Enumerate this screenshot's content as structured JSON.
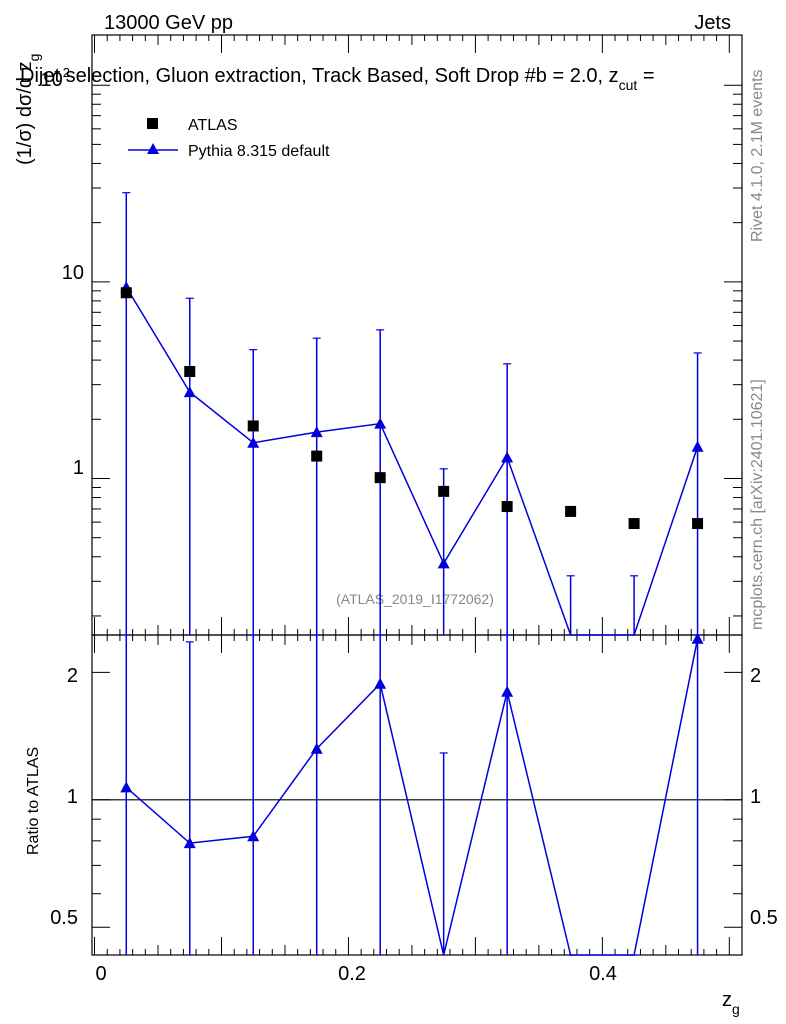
{
  "header": {
    "left": "13000 GeV pp",
    "right": "Jets",
    "title": "Dijet selection, Gluon extraction, Track Based, Soft Drop #b = 2.0, z",
    "title_sub": "cut",
    "title_tail": " =",
    "rivet": "Rivet 4.1.0,  2.1M events",
    "mcplots": "mcplots.cern.ch [arXiv:2401.10621]",
    "analysis": "(ATLAS_2019_I1772062)"
  },
  "axes": {
    "ylabel_main": "(1/σ) dσ/d z",
    "ylabel_main_sub": "g",
    "ylabel_ratio": "Ratio to ATLAS",
    "xlabel": "z",
    "xlabel_sub": "g",
    "main_tick_labels": [
      "10",
      "1"
    ],
    "main_top_tick": "10",
    "main_top_tick_exp": "2",
    "ratio_tick_labels": [
      "2",
      "1",
      "0.5"
    ],
    "x_tick_labels": [
      "0",
      "0.2",
      "0.4"
    ]
  },
  "legend": {
    "atlas": "ATLAS",
    "pythia": "Pythia 8.315 default"
  },
  "colors": {
    "data": "#000000",
    "mc": "#0000dd"
  },
  "chart_data": [
    {
      "type": "scatter",
      "x": [
        0.025,
        0.075,
        0.125,
        0.175,
        0.225,
        0.275,
        0.325,
        0.375,
        0.425,
        0.475
      ],
      "xlim": [
        -0.002,
        0.51
      ],
      "ylim": [
        0.16,
        180
      ],
      "yscale": "log",
      "series": [
        {
          "name": "ATLAS",
          "values": [
            8.8,
            3.5,
            1.85,
            1.3,
            1.01,
            0.86,
            0.72,
            0.68,
            0.59,
            0.59
          ]
        },
        {
          "name": "Pythia 8.315 default",
          "values": [
            9.4,
            2.75,
            1.52,
            1.72,
            1.9,
            0.37,
            1.28,
            0.16,
            0.16,
            1.45
          ],
          "err_low": [
            9.4,
            2.75,
            1.52,
            1.72,
            1.9,
            0.37,
            1.28,
            0.16,
            0.16,
            1.45
          ],
          "err_high": [
            19.0,
            5.5,
            3.0,
            3.45,
            3.8,
            0.75,
            2.55,
            0.16,
            0.16,
            2.9
          ]
        }
      ]
    },
    {
      "type": "line",
      "x": [
        0.025,
        0.075,
        0.125,
        0.175,
        0.225,
        0.275,
        0.325,
        0.375,
        0.425,
        0.475
      ],
      "ylim": [
        0.43,
        2.45
      ],
      "yscale": "log",
      "reference": 1,
      "series": [
        {
          "name": "Pythia 8.315 default",
          "values": [
            1.07,
            0.79,
            0.82,
            1.32,
            1.88,
            0.42,
            1.8,
            0.2,
            0.2,
            2.4
          ],
          "err_low": [
            1.07,
            0.79,
            0.82,
            1.32,
            1.88,
            0.42,
            1.8,
            0.2,
            0.2,
            2.4
          ],
          "err_high": [
            2.15,
            1.57,
            1.63,
            2.64,
            3.77,
            0.87,
            3.6,
            0.2,
            0.2,
            4.8
          ]
        }
      ]
    }
  ]
}
